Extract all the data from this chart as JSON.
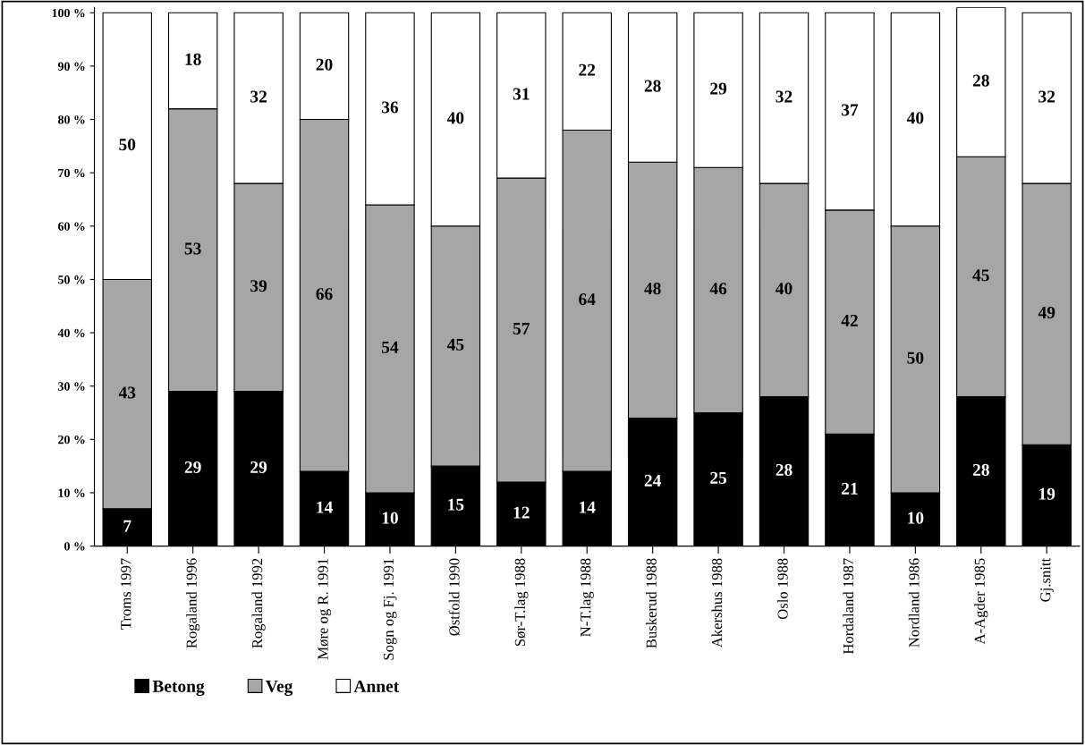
{
  "chart_data": {
    "type": "bar",
    "stacked": true,
    "data_labels": true,
    "legend": "bottom left",
    "grid": false,
    "categories": [
      "Troms 1997",
      "Rogaland 1996",
      "Rogaland 1992",
      "Møre og R. 1991",
      "Sogn og Fj. 1991",
      "Østfold 1990",
      "Sør-T.lag 1988",
      "N-T.lag 1988",
      "Buskerud 1988",
      "Akershus 1988",
      "Oslo 1988",
      "Hordaland 1987",
      "Nordland 1986",
      "A-Agder 1985",
      "Gj.snitt"
    ],
    "series": [
      {
        "name": "Betong",
        "color": "#000000",
        "values": [
          7,
          29,
          29,
          14,
          10,
          15,
          12,
          14,
          24,
          25,
          28,
          21,
          10,
          28,
          19
        ]
      },
      {
        "name": "Veg",
        "color": "#a6a6a6",
        "values": [
          43,
          53,
          39,
          66,
          54,
          45,
          57,
          64,
          48,
          46,
          40,
          42,
          50,
          45,
          49
        ]
      },
      {
        "name": "Annet",
        "color": "#ffffff",
        "values": [
          50,
          18,
          32,
          20,
          36,
          40,
          31,
          22,
          28,
          29,
          32,
          37,
          40,
          28,
          32
        ]
      }
    ],
    "ylim": [
      0,
      101
    ],
    "yticks": [
      {
        "value": 0,
        "label": "0 %"
      },
      {
        "value": 10,
        "label": "10 %"
      },
      {
        "value": 20,
        "label": "20 %"
      },
      {
        "value": 30,
        "label": "30 %"
      },
      {
        "value": 40,
        "label": "40 %"
      },
      {
        "value": 50,
        "label": "50 %"
      },
      {
        "value": 60,
        "label": "60 %"
      },
      {
        "value": 70,
        "label": "70 %"
      },
      {
        "value": 80,
        "label": "80 %"
      },
      {
        "value": 90,
        "label": "90 %"
      },
      {
        "value": 100,
        "label": "100 %"
      }
    ]
  }
}
